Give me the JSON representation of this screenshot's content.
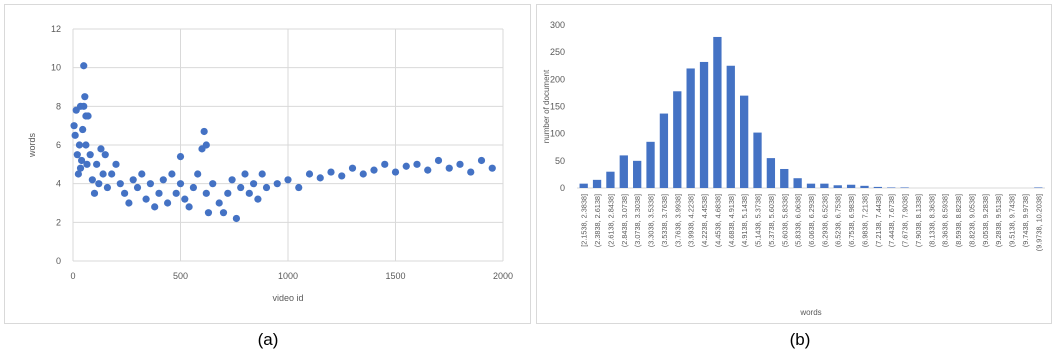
{
  "captions": {
    "a": "(a)",
    "b": "(b)"
  },
  "colors": {
    "points": "#4472C4",
    "bars": "#4472C4",
    "grid": "#d9d9d9"
  },
  "chart_data": [
    {
      "type": "scatter",
      "xlabel": "video id",
      "ylabel": "words",
      "xlim": [
        0,
        2000
      ],
      "ylim": [
        0,
        12
      ],
      "xticks": [
        0,
        500,
        1000,
        1500,
        2000
      ],
      "yticks": [
        0,
        2,
        4,
        6,
        8,
        10,
        12
      ],
      "grid": true,
      "legend": "none",
      "series": [
        {
          "x": [
            5,
            10,
            15,
            20,
            25,
            30,
            35,
            40,
            45,
            50,
            55,
            60,
            65,
            70,
            80,
            90,
            100,
            110,
            120,
            130,
            140,
            150,
            160,
            180,
            200,
            220,
            240,
            260,
            280,
            300,
            320,
            340,
            360,
            380,
            400,
            420,
            440,
            460,
            480,
            500,
            520,
            540,
            560,
            580,
            600,
            610,
            620,
            630,
            650,
            680,
            700,
            720,
            740,
            760,
            780,
            800,
            820,
            840,
            860,
            880,
            900,
            950,
            1000,
            1050,
            1100,
            1150,
            1200,
            1250,
            1300,
            1350,
            1400,
            1450,
            1500,
            1550,
            1600,
            1650,
            1700,
            1750,
            1800,
            1850,
            1900,
            1950,
            50,
            60,
            35,
            620,
            500
          ],
          "y": [
            7.0,
            6.5,
            7.8,
            5.5,
            4.5,
            6.0,
            4.8,
            5.2,
            6.8,
            10.1,
            8.5,
            6.0,
            5.0,
            7.5,
            5.5,
            4.2,
            3.5,
            5.0,
            4.0,
            5.8,
            4.5,
            5.5,
            3.8,
            4.5,
            5.0,
            4.0,
            3.5,
            3.0,
            4.2,
            3.8,
            4.5,
            3.2,
            4.0,
            2.8,
            3.5,
            4.2,
            3.0,
            4.5,
            3.5,
            4.0,
            3.2,
            2.8,
            3.8,
            4.5,
            5.8,
            6.7,
            3.5,
            2.5,
            4.0,
            3.0,
            2.5,
            3.5,
            4.2,
            2.2,
            3.8,
            4.5,
            3.5,
            4.0,
            3.2,
            4.5,
            3.8,
            4.0,
            4.2,
            3.8,
            4.5,
            4.3,
            4.6,
            4.4,
            4.8,
            4.5,
            4.7,
            5.0,
            4.6,
            4.9,
            5.0,
            4.7,
            5.2,
            4.8,
            5.0,
            4.6,
            5.2,
            4.8,
            8.0,
            7.5,
            8.0,
            6.0,
            5.4
          ]
        }
      ]
    },
    {
      "type": "bar",
      "xlabel": "words",
      "ylabel": "number of document",
      "ylim": [
        0,
        300
      ],
      "yticks": [
        0,
        50,
        100,
        150,
        200,
        250,
        300
      ],
      "grid": false,
      "legend": "none",
      "categories": [
        "[2.1538, 2.3838]",
        "(2.3838, 2.6138]",
        "(2.6138, 2.8438]",
        "(2.8438, 3.0738]",
        "(3.0738, 3.3038]",
        "(3.3038, 3.5338]",
        "(3.5338, 3.7638]",
        "(3.7638, 3.9938]",
        "(3.9938, 4.2238]",
        "(4.2238, 4.4538]",
        "(4.4538, 4.6838]",
        "(4.6838, 4.9138]",
        "(4.9138, 5.1438]",
        "(5.1438, 5.3738]",
        "(5.3738, 5.6038]",
        "(5.6038, 5.8338]",
        "(5.8338, 6.0638]",
        "(6.0638, 6.2938]",
        "(6.2938, 6.5238]",
        "(6.5238, 6.7538]",
        "(6.7538, 6.9838]",
        "(6.9838, 7.2138]",
        "(7.2138, 7.4438]",
        "(7.4438, 7.6738]",
        "(7.6738, 7.9038]",
        "(7.9038, 8.1338]",
        "(8.1338, 8.3638]",
        "(8.3638, 8.5938]",
        "(8.5938, 8.8238]",
        "(8.8238, 9.0538]",
        "(9.0538, 9.2838]",
        "(9.2838, 9.5138]",
        "(9.5138, 9.7438]",
        "(9.7438, 9.9738]",
        "(9.9738, 10.2038]"
      ],
      "values": [
        8,
        15,
        30,
        60,
        50,
        85,
        137,
        178,
        220,
        232,
        278,
        225,
        170,
        102,
        55,
        35,
        18,
        8,
        8,
        5,
        6,
        4,
        2,
        1,
        1,
        0,
        0,
        0,
        0,
        0,
        0,
        0,
        0,
        0,
        1
      ]
    }
  ]
}
